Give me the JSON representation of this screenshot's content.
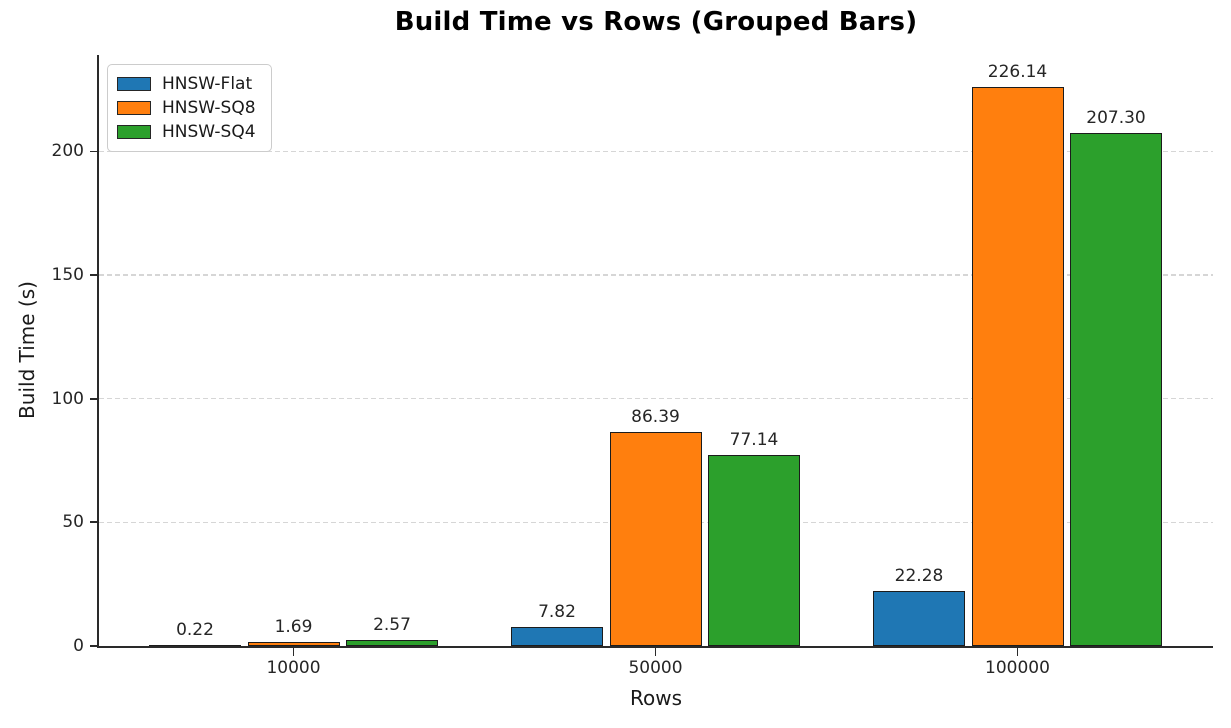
{
  "figure": {
    "title": "Build Time vs Rows (Grouped Bars)",
    "xlabel": "Rows",
    "ylabel": "Build Time (s)"
  },
  "chart_data": {
    "type": "bar",
    "title": "Build Time vs Rows (Grouped Bars)",
    "xlabel": "Rows",
    "ylabel": "Build Time (s)",
    "categories": [
      "10000",
      "50000",
      "100000"
    ],
    "series": [
      {
        "name": "HNSW-Flat",
        "color": "#1f77b4",
        "values": [
          0.22,
          7.82,
          22.28
        ],
        "labels": [
          "0.22",
          "7.82",
          "22.28"
        ]
      },
      {
        "name": "HNSW-SQ8",
        "color": "#ff7f0e",
        "values": [
          1.69,
          86.39,
          226.14
        ],
        "labels": [
          "1.69",
          "86.39",
          "226.14"
        ]
      },
      {
        "name": "HNSW-SQ4",
        "color": "#2ca02c",
        "values": [
          2.57,
          77.14,
          207.3
        ],
        "labels": [
          "2.57",
          "77.14",
          "207.30"
        ]
      }
    ],
    "y_ticks": [
      0,
      50,
      100,
      150,
      200
    ],
    "y_tick_labels": [
      "0",
      "50",
      "100",
      "150",
      "200"
    ],
    "ylim": [
      0,
      239
    ],
    "grid": "horizontal-dashed",
    "legend_position": "upper-left"
  }
}
